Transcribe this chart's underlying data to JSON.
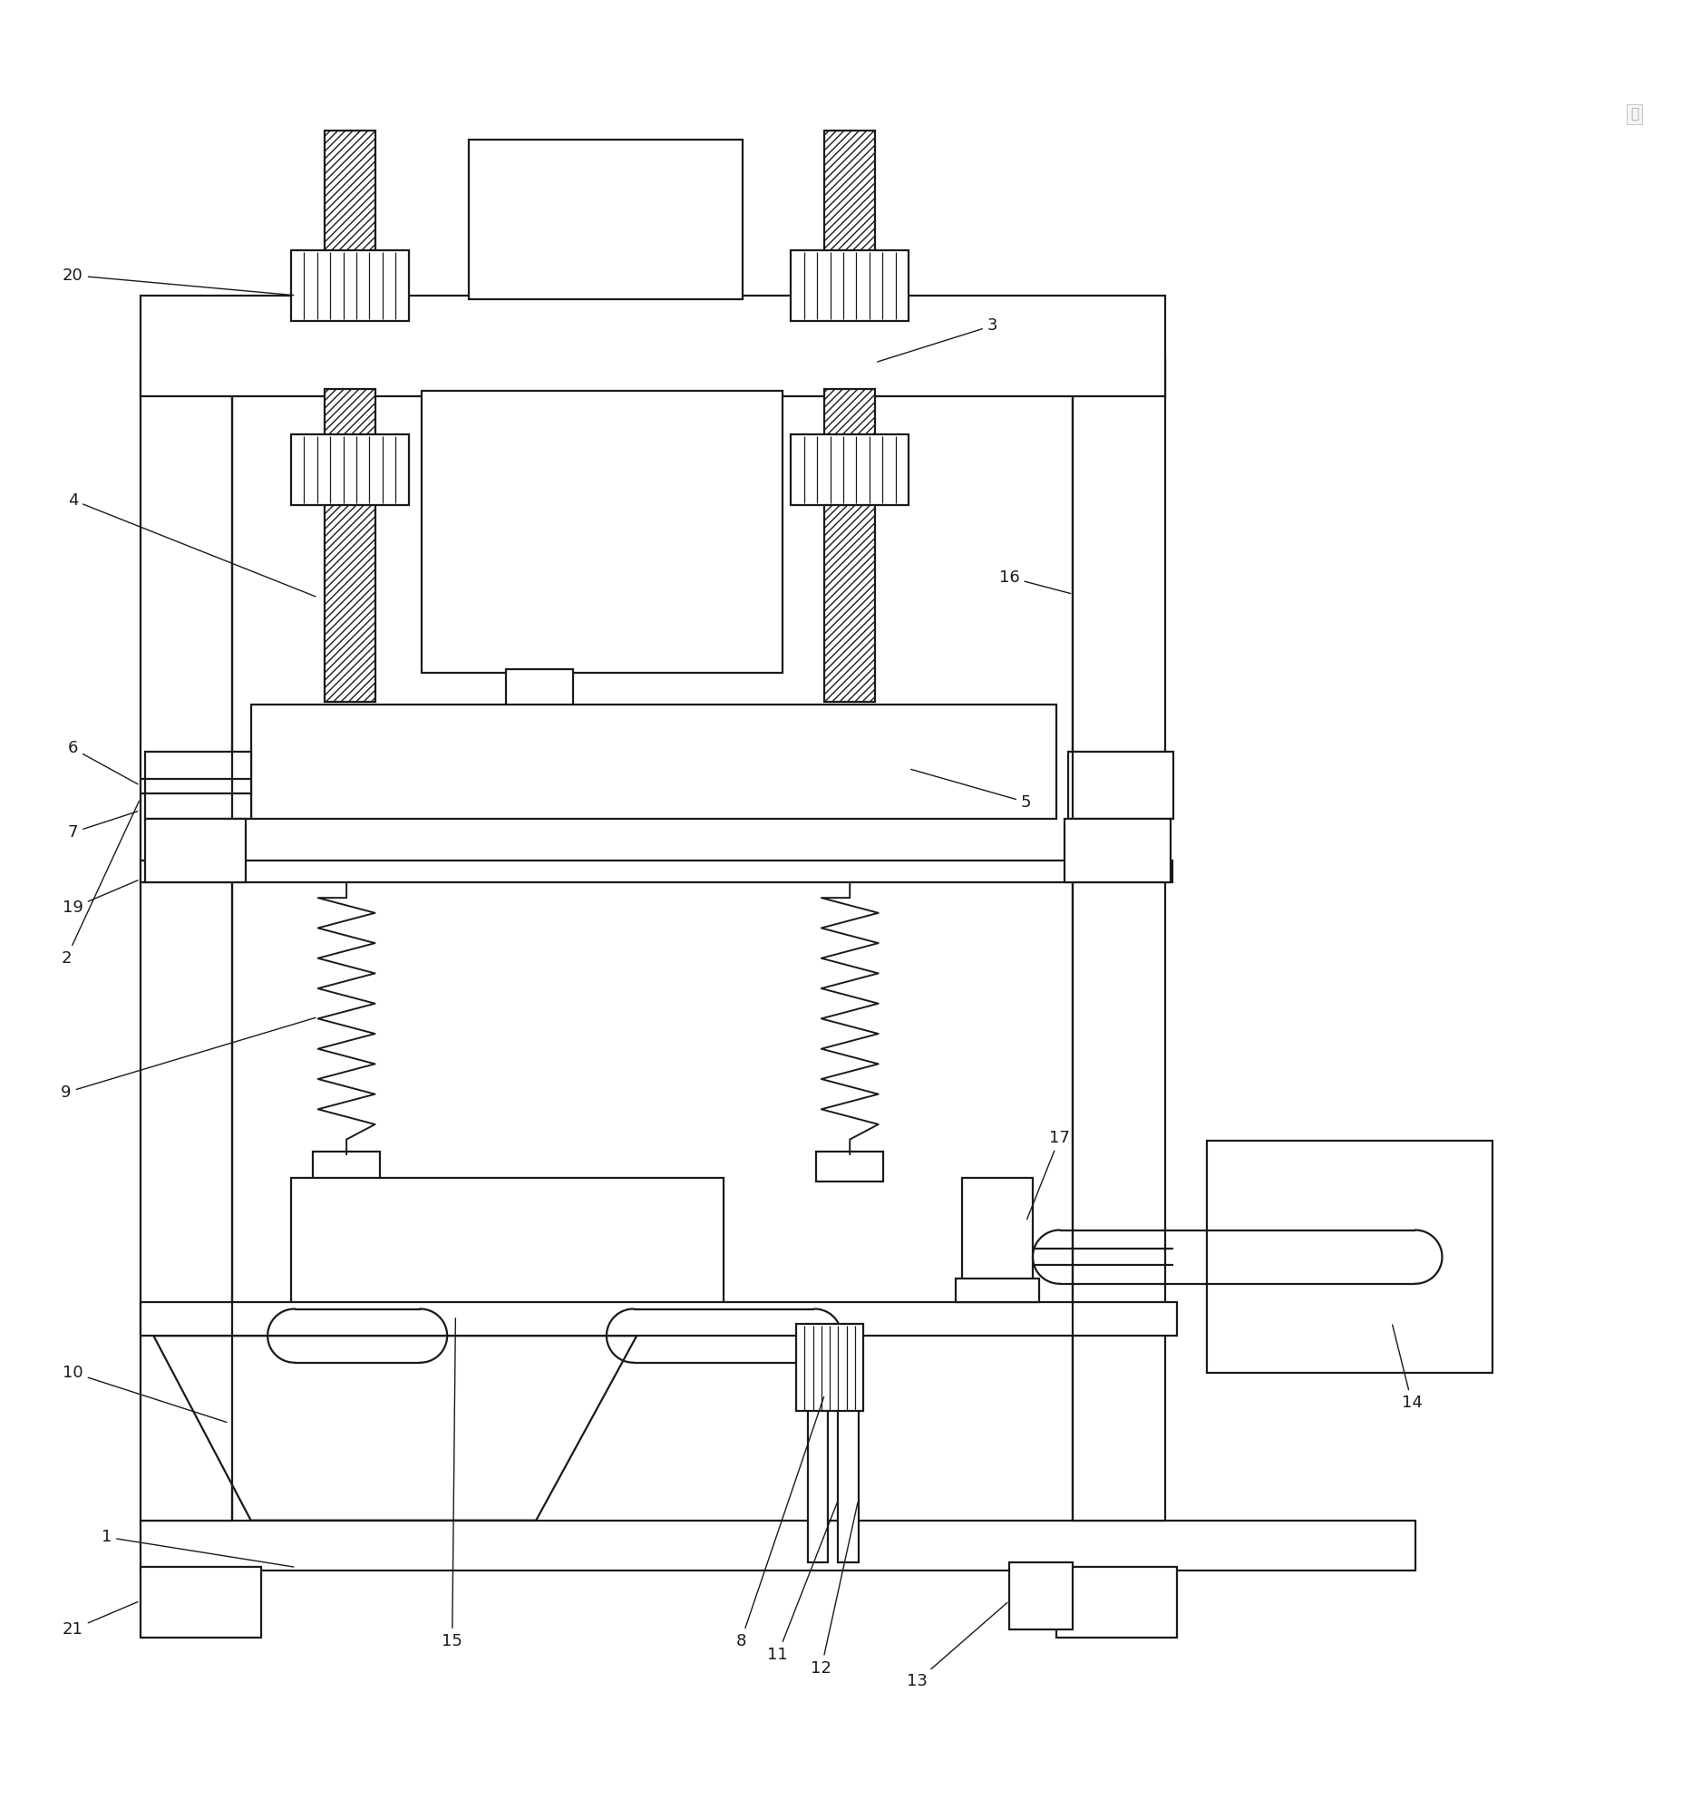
{
  "bg_color": "#ffffff",
  "line_color": "#1a1a1a",
  "line_width": 1.6,
  "fig_width": 18.56,
  "fig_height": 19.84,
  "annotation_fontsize": 13,
  "annotations": [
    [
      1,
      0.062,
      0.12,
      0.175,
      0.102
    ],
    [
      2,
      0.038,
      0.465,
      0.082,
      0.56
    ],
    [
      3,
      0.59,
      0.842,
      0.52,
      0.82
    ],
    [
      4,
      0.042,
      0.738,
      0.188,
      0.68
    ],
    [
      5,
      0.61,
      0.558,
      0.54,
      0.578
    ],
    [
      6,
      0.042,
      0.59,
      0.082,
      0.568
    ],
    [
      7,
      0.042,
      0.54,
      0.082,
      0.553
    ],
    [
      8,
      0.44,
      0.058,
      0.49,
      0.205
    ],
    [
      9,
      0.038,
      0.385,
      0.188,
      0.43
    ],
    [
      10,
      0.042,
      0.218,
      0.135,
      0.188
    ],
    [
      11,
      0.462,
      0.05,
      0.498,
      0.142
    ],
    [
      12,
      0.488,
      0.042,
      0.51,
      0.142
    ],
    [
      13,
      0.545,
      0.034,
      0.6,
      0.082
    ],
    [
      14,
      0.84,
      0.2,
      0.828,
      0.248
    ],
    [
      15,
      0.268,
      0.058,
      0.27,
      0.252
    ],
    [
      16,
      0.6,
      0.692,
      0.638,
      0.682
    ],
    [
      17,
      0.63,
      0.358,
      0.61,
      0.308
    ],
    [
      19,
      0.042,
      0.495,
      0.082,
      0.512
    ],
    [
      20,
      0.042,
      0.872,
      0.175,
      0.86
    ],
    [
      21,
      0.042,
      0.065,
      0.082,
      0.082
    ]
  ]
}
